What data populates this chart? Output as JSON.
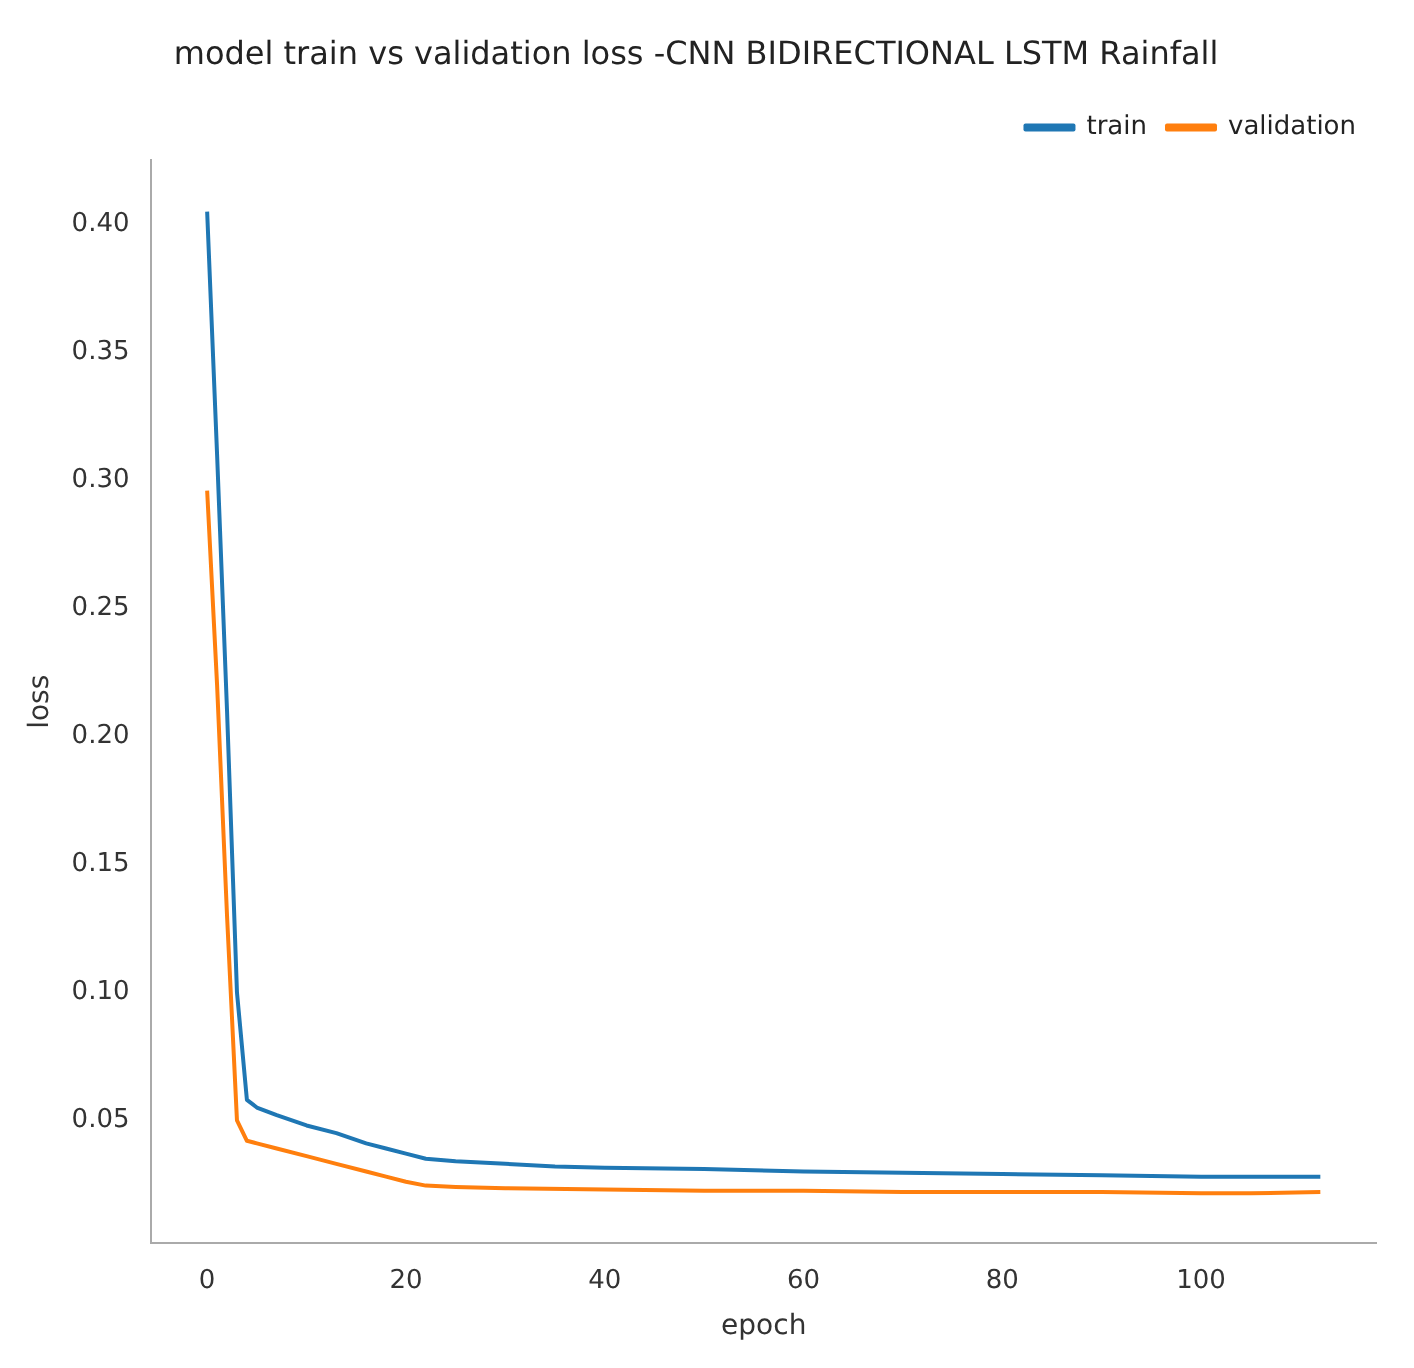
{
  "chart_data": {
    "type": "line",
    "title": "model train vs validation loss -CNN BIDIRECTIONAL LSTM Rainfall",
    "xlabel": "epoch",
    "ylabel": "loss",
    "xlim": [
      -5.6,
      117.6
    ],
    "ylim": [
      0.002,
      0.425
    ],
    "xticks": [
      0,
      20,
      40,
      60,
      80,
      100
    ],
    "yticks": [
      0.05,
      {
        "value": 0.1,
        "label": "0.10"
      },
      0.15,
      {
        "value": 0.2,
        "label": "0.20"
      },
      0.25,
      {
        "value": 0.3,
        "label": "0.30"
      },
      0.35,
      {
        "value": 0.4,
        "label": "0.40"
      }
    ],
    "grid": false,
    "legend": "top right",
    "marker": "none",
    "line_style": "solid",
    "series": [
      {
        "name": "train",
        "color": "#1f77b4",
        "x": [
          0,
          1,
          2,
          3,
          4,
          5,
          7,
          10,
          13,
          16,
          18,
          20,
          22,
          25,
          30,
          35,
          40,
          50,
          60,
          70,
          80,
          90,
          100,
          105,
          112
        ],
        "values": [
          0.405,
          0.31,
          0.21,
          0.1,
          0.058,
          0.055,
          0.052,
          0.048,
          0.045,
          0.041,
          0.039,
          0.037,
          0.035,
          0.034,
          0.033,
          0.032,
          0.0315,
          0.031,
          0.03,
          0.0295,
          0.029,
          0.0285,
          0.028,
          0.028,
          0.028
        ]
      },
      {
        "name": "validation",
        "color": "#ff7f0e",
        "x": [
          0,
          1,
          2,
          3,
          4,
          5,
          7,
          10,
          13,
          16,
          18,
          20,
          22,
          25,
          30,
          40,
          50,
          60,
          70,
          80,
          90,
          100,
          105,
          112
        ],
        "values": [
          0.296,
          0.22,
          0.13,
          0.05,
          0.042,
          0.041,
          0.039,
          0.036,
          0.033,
          0.03,
          0.028,
          0.026,
          0.0245,
          0.024,
          0.0235,
          0.023,
          0.0225,
          0.0225,
          0.022,
          0.022,
          0.022,
          0.0215,
          0.0215,
          0.022
        ]
      }
    ]
  }
}
